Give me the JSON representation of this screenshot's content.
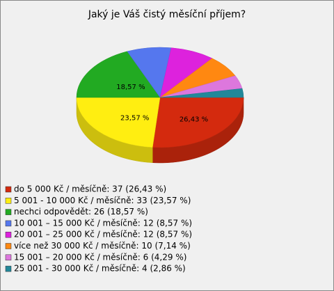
{
  "chart_data": {
    "type": "pie",
    "title": "Jaký je Váš čistý měsíční příjem?",
    "categories": [
      "do 5 000 Kč / měsíčně",
      "5 001 - 10 000 Kč / měsíčně",
      "nechci odpovědět",
      "10 001 – 15 000 Kč / měsíčně",
      "20 001 – 25 000 Kč / měsíčně",
      "více než 30 000 Kč / měsíčně",
      "15 001 – 20 000 Kč / měsíčně",
      "25 001 - 30 000 Kč / měsíčně"
    ],
    "legend": [
      "do 5 000 Kč / měsíčně: 37 (26,43 %)",
      "5 001 - 10 000 Kč / měsíčně: 33 (23,57 %)",
      "nechci odpovědět: 26 (18,57 %)",
      "10 001 – 15 000 Kč / měsíčně: 12 (8,57 %)",
      "20 001 – 25 000 Kč / měsíčně: 12 (8,57 %)",
      "více než 30 000 Kč / měsíčně: 10 (7,14 %)",
      "15 001 – 20 000 Kč / měsíčně: 6 (4,29 %)",
      "25 001 - 30 000 Kč / měsíčně: 4 (2,86 %)"
    ],
    "values": [
      26.43,
      23.57,
      18.57,
      8.57,
      8.57,
      7.14,
      4.29,
      2.86
    ],
    "value_labels": [
      "26,43 %",
      "23,57 %",
      "18,57 %",
      null,
      null,
      null,
      null,
      null
    ],
    "colors": [
      "#d42a0e",
      "#ffee11",
      "#22aa22",
      "#5577ee",
      "#dd22dd",
      "#ff8811",
      "#dd77dd",
      "#228899"
    ]
  }
}
